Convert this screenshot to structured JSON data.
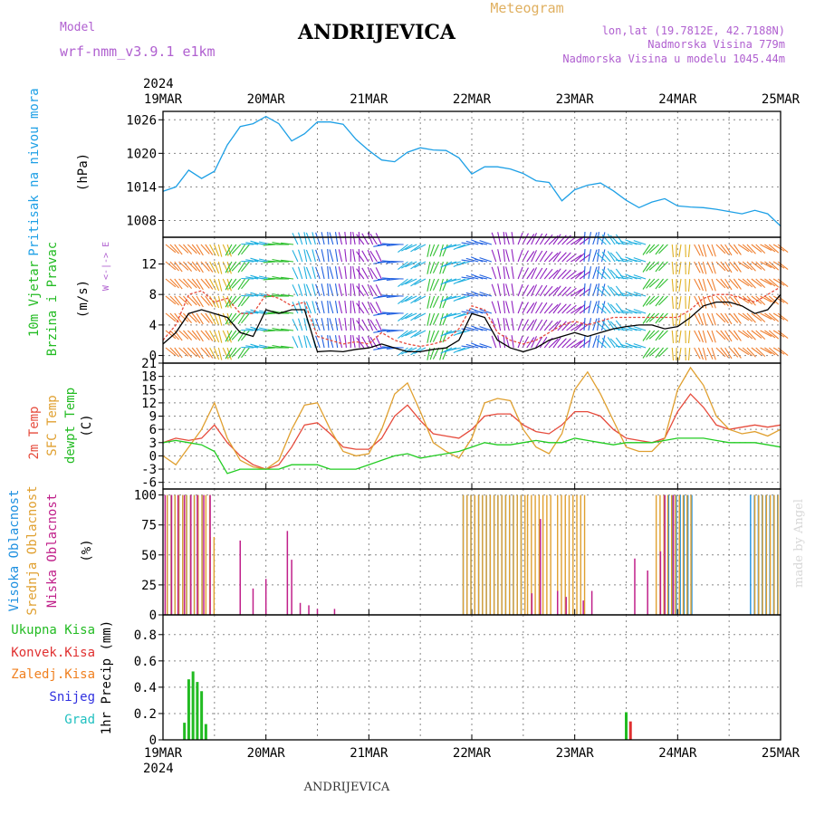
{
  "header": {
    "model_label": "Model",
    "model_name": "wrf-nmm_v3.9.1  e1km",
    "station": "ANDRIJEVICA",
    "product": "Meteogram",
    "coords": "lon,lat (19.7812E, 42.7188N)",
    "elevation": "Nadmorska Visina 779m",
    "model_elevation": "Nadmorska Visina u modelu 1045.44m",
    "footer_station": "ANDRIJEVICA",
    "watermark": "made by Angel"
  },
  "time_axis": {
    "year": "2024",
    "days": [
      "19MAR",
      "20MAR",
      "21MAR",
      "22MAR",
      "23MAR",
      "24MAR",
      "25MAR"
    ]
  },
  "colors": {
    "pressure": "#1ea0e6",
    "wind_speed": "#000000",
    "wind_gust": "#e64b3c",
    "t2m": "#e64b3c",
    "tsfc": "#e0a030",
    "dewpoint": "#22cc22",
    "cloud_high": "#1e90e0",
    "cloud_mid": "#e0a030",
    "cloud_low": "#c0208a",
    "precip_total": "#22bb22",
    "precip_conv": "#e03030",
    "precip_frozen": "#f08020",
    "precip_snow": "#3030e0",
    "precip_hail": "#20c0c0"
  },
  "chart_data": [
    {
      "type": "line",
      "id": "pressure",
      "label_lines": [
        "Pritisak na nivou mora"
      ],
      "unit": "(hPa)",
      "yticks": [
        1008,
        1014,
        1020,
        1026
      ],
      "ylim": [
        1005,
        1027.5
      ],
      "xlim": [
        0,
        144
      ],
      "grid": true,
      "series": [
        {
          "key": "pressure",
          "x": [
            0,
            3,
            6,
            9,
            12,
            15,
            18,
            21,
            24,
            27,
            30,
            33,
            36,
            39,
            42,
            45,
            48,
            51,
            54,
            57,
            60,
            63,
            66,
            69,
            72,
            75,
            78,
            81,
            84,
            87,
            90,
            93,
            96,
            99,
            102,
            105,
            108,
            111,
            114,
            117,
            120,
            123,
            126,
            129,
            132,
            135,
            138,
            141,
            144
          ],
          "y": [
            1013.2,
            1014,
            1017,
            1015.5,
            1016.8,
            1021.5,
            1024.8,
            1025.3,
            1026.6,
            1025.3,
            1022.2,
            1023.5,
            1025.6,
            1025.6,
            1025.2,
            1022.5,
            1020.5,
            1018.8,
            1018.5,
            1020.2,
            1021,
            1020.6,
            1020.5,
            1019.2,
            1016.3,
            1017.6,
            1017.6,
            1017.2,
            1016.4,
            1015.1,
            1014.8,
            1011.5,
            1013.5,
            1014.3,
            1014.7,
            1013.3,
            1011.6,
            1010.3,
            1011.3,
            1011.9,
            1010.6,
            1010.4,
            1010.3,
            1010,
            1009.6,
            1009.2,
            1009.8,
            1009.2,
            1007
          ]
        }
      ]
    },
    {
      "type": "line",
      "id": "wind",
      "label_lines": [
        "10m Vjetar",
        "Brzina i Pravac"
      ],
      "unit": "(m/s)",
      "compass": "W  <-|->  E",
      "yticks": [
        0,
        4,
        8,
        12
      ],
      "ylim": [
        -1,
        15.5
      ],
      "xlim": [
        0,
        144
      ],
      "grid": true,
      "series": [
        {
          "key": "wind_speed",
          "x": [
            0,
            3,
            6,
            9,
            12,
            15,
            18,
            21,
            24,
            27,
            30,
            33,
            36,
            39,
            42,
            45,
            48,
            51,
            54,
            57,
            60,
            63,
            66,
            69,
            72,
            75,
            78,
            81,
            84,
            87,
            90,
            93,
            96,
            99,
            102,
            105,
            108,
            111,
            114,
            117,
            120,
            123,
            126,
            129,
            132,
            135,
            138,
            141,
            144
          ],
          "y": [
            1.5,
            3,
            5.5,
            6,
            5.5,
            5,
            3,
            2.5,
            6,
            5.5,
            6,
            6,
            0.5,
            0.6,
            0.5,
            0.8,
            1,
            1.5,
            1,
            0.5,
            0.5,
            0.8,
            1,
            2,
            5.5,
            5,
            2,
            1,
            0.5,
            1,
            2,
            2.5,
            3,
            2.5,
            3,
            3.5,
            3.8,
            4,
            4,
            3.5,
            3.8,
            5,
            6.5,
            7,
            7,
            6.5,
            5.5,
            6,
            8
          ]
        },
        {
          "key": "wind_gust",
          "x": [
            0,
            3,
            6,
            9,
            12,
            15,
            18,
            21,
            24,
            27,
            30,
            33,
            36,
            39,
            42,
            45,
            48,
            51,
            54,
            57,
            60,
            63,
            66,
            69,
            72,
            75,
            78,
            81,
            84,
            87,
            90,
            93,
            96,
            99,
            102,
            105,
            108,
            111,
            114,
            117,
            120,
            123,
            126,
            129,
            132,
            135,
            138,
            141,
            144
          ],
          "y": [
            2,
            4,
            8,
            8.5,
            7,
            7.5,
            5.5,
            5.5,
            8,
            7.5,
            6.5,
            7,
            2.5,
            2,
            1.5,
            1.8,
            1.5,
            3,
            2,
            1.5,
            1.2,
            1.5,
            2,
            3.5,
            6.5,
            6,
            3,
            2,
            1.5,
            2,
            3,
            4,
            4.5,
            4,
            4.5,
            5,
            5,
            5,
            5,
            5,
            5,
            6,
            7.5,
            8,
            8,
            7.5,
            7,
            8,
            9
          ]
        }
      ]
    },
    {
      "type": "line",
      "id": "temperature",
      "label_lines": [
        "2m Temp",
        "SFC Temp",
        "dewpt Temp"
      ],
      "unit": "(C)",
      "yticks": [
        -6,
        -3,
        0,
        3,
        6,
        9,
        12,
        15,
        18,
        21
      ],
      "ylim": [
        -7.5,
        21
      ],
      "xlim": [
        0,
        144
      ],
      "grid": true,
      "series": [
        {
          "key": "t2m",
          "x": [
            0,
            3,
            6,
            9,
            12,
            15,
            18,
            21,
            24,
            27,
            30,
            33,
            36,
            39,
            42,
            45,
            48,
            51,
            54,
            57,
            60,
            63,
            66,
            69,
            72,
            75,
            78,
            81,
            84,
            87,
            90,
            93,
            96,
            99,
            102,
            105,
            108,
            111,
            114,
            117,
            120,
            123,
            126,
            129,
            132,
            135,
            138,
            141,
            144
          ],
          "y": [
            3,
            4,
            3.5,
            4,
            7,
            3,
            0,
            -2,
            -3,
            -2,
            2,
            7,
            7.5,
            5,
            2,
            1.5,
            1.5,
            4,
            9,
            11.5,
            8,
            5,
            4.5,
            4,
            6,
            9,
            9.5,
            9.5,
            7,
            5.5,
            5,
            7,
            10,
            10,
            9,
            6,
            4,
            3.5,
            3,
            4,
            10,
            14,
            11,
            7,
            6,
            6.5,
            7,
            6.5,
            7
          ]
        },
        {
          "key": "tsfc",
          "x": [
            0,
            3,
            6,
            9,
            12,
            15,
            18,
            21,
            24,
            27,
            30,
            33,
            36,
            39,
            42,
            45,
            48,
            51,
            54,
            57,
            60,
            63,
            66,
            69,
            72,
            75,
            78,
            81,
            84,
            87,
            90,
            93,
            96,
            99,
            102,
            105,
            108,
            111,
            114,
            117,
            120,
            123,
            126,
            129,
            132,
            135,
            138,
            141,
            144
          ],
          "y": [
            0,
            -2,
            2,
            6,
            12,
            4,
            -1,
            -2.5,
            -3,
            -1,
            6,
            11.5,
            12,
            6,
            1,
            0,
            0.5,
            6,
            14,
            16.5,
            10,
            3,
            1,
            -0.5,
            4,
            12,
            13,
            12.5,
            6,
            2,
            0.5,
            5,
            15,
            19,
            14,
            8,
            2,
            1,
            1,
            4,
            15,
            20,
            16,
            9,
            6,
            5,
            5.5,
            4.5,
            6
          ]
        },
        {
          "key": "dewpoint",
          "x": [
            0,
            3,
            6,
            9,
            12,
            15,
            18,
            21,
            24,
            27,
            30,
            33,
            36,
            39,
            42,
            45,
            48,
            51,
            54,
            57,
            60,
            63,
            66,
            69,
            72,
            75,
            78,
            81,
            84,
            87,
            90,
            93,
            96,
            99,
            102,
            105,
            108,
            111,
            114,
            117,
            120,
            123,
            126,
            129,
            132,
            135,
            138,
            141,
            144
          ],
          "y": [
            3,
            3.5,
            3,
            2.5,
            1,
            -4,
            -3,
            -3,
            -3,
            -3,
            -2,
            -2,
            -2,
            -3,
            -3,
            -3,
            -2,
            -1,
            0,
            0.5,
            -0.5,
            0,
            0.5,
            1,
            2,
            3,
            2.5,
            2.5,
            3,
            3.5,
            3,
            3,
            4,
            3.5,
            3,
            2.5,
            3,
            3,
            3,
            3.5,
            4,
            4,
            4,
            3.5,
            3,
            3,
            3,
            2.5,
            2
          ]
        }
      ]
    },
    {
      "type": "bar",
      "id": "clouds",
      "label_lines": [
        "Visoka Oblacnost",
        "Srednja Oblacnost",
        "Niska Oblacnost"
      ],
      "unit": "(%)",
      "yticks": [
        0,
        25,
        50,
        75,
        100
      ],
      "ylim": [
        0,
        105
      ],
      "xlim": [
        0,
        144
      ],
      "grid": true,
      "series": [
        {
          "key": "cloud_high",
          "spans": [
            [
              1,
              10,
              100
            ],
            [
              70,
              84,
              100
            ],
            [
              117,
              124,
              100
            ],
            [
              137,
              144,
              100
            ]
          ]
        },
        {
          "key": "cloud_mid",
          "spans": [
            [
              1,
              11,
              100
            ],
            [
              11,
              12,
              65
            ],
            [
              70,
              85,
              100
            ],
            [
              85,
              91,
              100
            ],
            [
              92,
              99,
              100
            ],
            [
              115,
              124,
              100
            ],
            [
              138,
              144,
              100
            ]
          ]
        },
        {
          "key": "cloud_low",
          "x": [
            0.5,
            2,
            3.5,
            5,
            6.5,
            8,
            9.5,
            11,
            18,
            21,
            24,
            29,
            30,
            32,
            34,
            36,
            40,
            86,
            88,
            92,
            94,
            98,
            100,
            110,
            113,
            116,
            117,
            119
          ],
          "y": [
            100,
            100,
            100,
            100,
            100,
            100,
            100,
            100,
            62,
            22,
            30,
            70,
            46,
            10,
            8,
            5,
            5,
            18,
            80,
            20,
            15,
            12,
            20,
            47,
            37,
            53,
            100,
            100
          ]
        }
      ]
    },
    {
      "type": "bar",
      "id": "precip",
      "label_lines": [
        "1hr Precip (mm)"
      ],
      "legend": [
        "Ukupna Kisa",
        "Konvek.Kisa",
        "Zaledj.Kisa",
        "Snijeg",
        "Grad"
      ],
      "yticks": [
        0,
        0.2,
        0.4,
        0.6,
        0.8
      ],
      "ylim": [
        0,
        0.95
      ],
      "xlim": [
        0,
        144
      ],
      "grid": true,
      "series": [
        {
          "key": "precip_total",
          "x": [
            5,
            6,
            7,
            8,
            9,
            10
          ],
          "y": [
            0.13,
            0.46,
            0.52,
            0.44,
            0.37,
            0.12
          ]
        },
        {
          "key": "precip_total",
          "x": [
            108
          ],
          "y": [
            0.21
          ]
        },
        {
          "key": "precip_conv",
          "x": [
            109
          ],
          "y": [
            0.14
          ]
        }
      ]
    }
  ]
}
